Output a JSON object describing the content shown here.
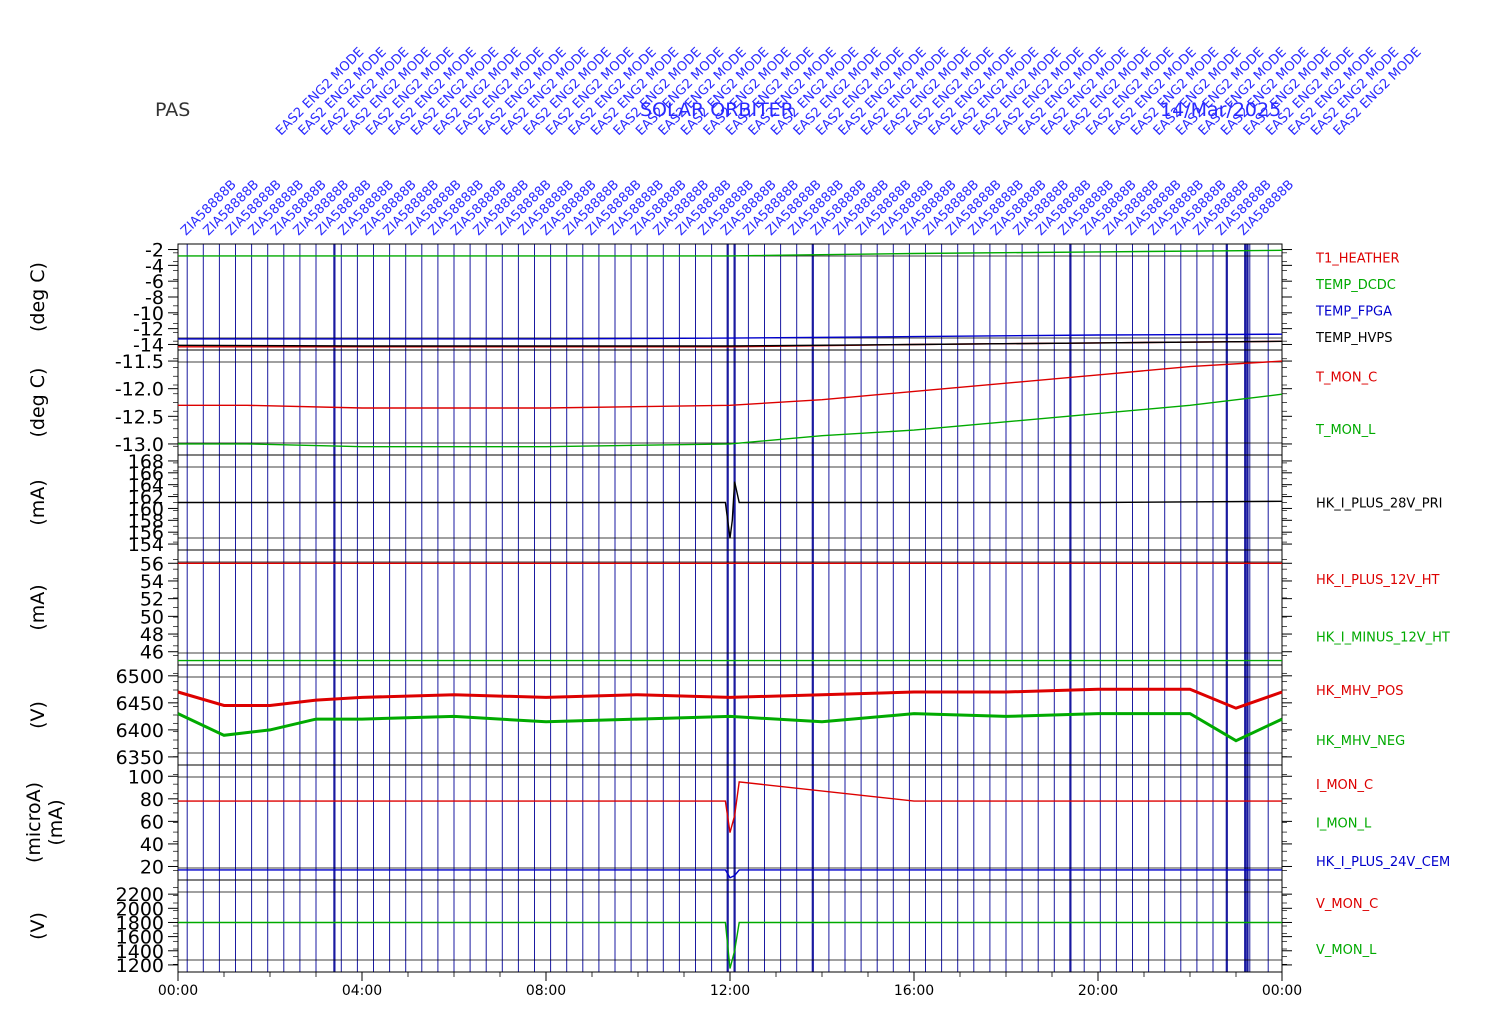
{
  "header": {
    "instrument": "PAS",
    "mission": "SOLAR ORBITER",
    "date": "14/Mar/2025"
  },
  "colors": {
    "red": "#dd0000",
    "green": "#00aa00",
    "blue": "#0000cc",
    "black": "#000000",
    "event_line": "#1a1aa0",
    "annotation": "#2a2aff"
  },
  "time_axis": {
    "tick_labels": [
      "00:00",
      "04:00",
      "08:00",
      "12:00",
      "16:00",
      "20:00",
      "00:00"
    ],
    "range_hours": [
      0,
      24
    ]
  },
  "annotations": {
    "top_row_text": "EAS2 ENG2 MODE",
    "bottom_row_text": "ZIA58888B",
    "note": "dense rotated event labels along the top"
  },
  "chart_data": [
    {
      "type": "line",
      "panel": "temperatures-1",
      "ylabel": "(deg C)",
      "ylim": [
        -14.7,
        -1.3
      ],
      "ytick_labels": [
        "-2",
        "-4",
        "-6",
        "-8",
        "-10",
        "-12",
        "-14"
      ],
      "ytick_values": [
        -2,
        -4,
        -6,
        -8,
        -10,
        -12,
        -14
      ],
      "series": [
        {
          "name": "T1_HEATHER",
          "color": "#dd0000",
          "x": [
            0,
            4,
            8,
            12,
            16,
            20,
            24
          ],
          "values": [
            -14.3,
            -14.3,
            -14.3,
            -14.3,
            -14.0,
            -13.8,
            -13.6
          ]
        },
        {
          "name": "TEMP_DCDC",
          "color": "#00aa00",
          "x": [
            0,
            4,
            8,
            12,
            16,
            20,
            24
          ],
          "values": [
            -2.8,
            -2.8,
            -2.8,
            -2.8,
            -2.5,
            -2.3,
            -2.1
          ]
        },
        {
          "name": "TEMP_FPGA",
          "color": "#0000cc",
          "x": [
            0,
            4,
            8,
            12,
            16,
            20,
            24
          ],
          "values": [
            -13.3,
            -13.3,
            -13.3,
            -13.2,
            -13.0,
            -12.8,
            -12.7
          ]
        },
        {
          "name": "TEMP_HVPS",
          "color": "#000000",
          "x": [
            0,
            4,
            8,
            12,
            16,
            20,
            24
          ],
          "values": [
            -14.1,
            -14.2,
            -14.2,
            -14.2,
            -14.0,
            -13.8,
            -13.6
          ]
        }
      ]
    },
    {
      "type": "line",
      "panel": "temperatures-2",
      "ylabel": "(deg C)",
      "ylim": [
        -13.2,
        -11.3
      ],
      "ytick_labels": [
        "-11.5",
        "-12.0",
        "-12.5",
        "-13.0"
      ],
      "ytick_values": [
        -11.5,
        -12.0,
        -12.5,
        -13.0
      ],
      "series": [
        {
          "name": "T_MON_C",
          "color": "#dd0000",
          "x": [
            0,
            1.5,
            4,
            8,
            12,
            14,
            16,
            18,
            20,
            22,
            24
          ],
          "values": [
            -12.3,
            -12.3,
            -12.35,
            -12.35,
            -12.3,
            -12.2,
            -12.05,
            -11.9,
            -11.75,
            -11.6,
            -11.5
          ]
        },
        {
          "name": "T_MON_L",
          "color": "#00aa00",
          "x": [
            0,
            1.5,
            4,
            8,
            12,
            14,
            16,
            18,
            20,
            22,
            24
          ],
          "values": [
            -13.0,
            -13.0,
            -13.05,
            -13.05,
            -13.0,
            -12.85,
            -12.75,
            -12.6,
            -12.45,
            -12.3,
            -12.1
          ]
        }
      ]
    },
    {
      "type": "line",
      "panel": "primary-current",
      "ylabel": "(mA)",
      "ylim": [
        153,
        169
      ],
      "ytick_labels": [
        "168",
        "166",
        "164",
        "162",
        "160",
        "158",
        "156",
        "154"
      ],
      "ytick_values": [
        168,
        166,
        164,
        162,
        160,
        158,
        156,
        154
      ],
      "series": [
        {
          "name": "HK_I_PLUS_28V_PRI",
          "color": "#000000",
          "x": [
            0,
            4,
            8,
            11.9,
            12.0,
            12.05,
            12.1,
            12.2,
            16,
            20,
            24
          ],
          "values": [
            161.0,
            161.0,
            161.0,
            161.0,
            155.0,
            158.0,
            164.5,
            161.0,
            161.0,
            161.0,
            161.2
          ]
        }
      ]
    },
    {
      "type": "line",
      "panel": "heater-currents",
      "ylabel": "(mA)",
      "ylim": [
        44.5,
        57.5
      ],
      "ytick_labels": [
        "56",
        "54",
        "52",
        "50",
        "48",
        "46"
      ],
      "ytick_values": [
        56,
        54,
        52,
        50,
        48,
        46
      ],
      "series": [
        {
          "name": "HK_I_PLUS_12V_HT",
          "color": "#dd0000",
          "x": [
            0,
            4,
            8,
            12,
            16,
            20,
            24
          ],
          "values": [
            56.0,
            56.0,
            56.0,
            56.0,
            56.0,
            56.0,
            56.0
          ]
        },
        {
          "name": "HK_I_MINUS_12V_HT",
          "color": "#00aa00",
          "x": [
            0,
            4,
            8,
            12,
            16,
            20,
            24
          ],
          "values": [
            45.0,
            45.0,
            45.0,
            45.0,
            45.0,
            45.0,
            45.0
          ]
        }
      ]
    },
    {
      "type": "line",
      "panel": "mcp-high-voltage",
      "ylabel": "(V)",
      "ylim": [
        6335,
        6520
      ],
      "ytick_labels": [
        "6500",
        "6450",
        "6400",
        "6350"
      ],
      "ytick_values": [
        6500,
        6450,
        6400,
        6350
      ],
      "series": [
        {
          "name": "HK_MHV_POS",
          "color": "#dd0000",
          "x": [
            0,
            1,
            2,
            3,
            4,
            6,
            8,
            10,
            12,
            14,
            16,
            18,
            20,
            22,
            23,
            24
          ],
          "values": [
            6470,
            6445,
            6445,
            6455,
            6460,
            6465,
            6460,
            6465,
            6460,
            6465,
            6470,
            6470,
            6475,
            6475,
            6440,
            6470
          ]
        },
        {
          "name": "HK_MHV_NEG",
          "color": "#00aa00",
          "x": [
            0,
            1,
            2,
            3,
            4,
            6,
            8,
            10,
            12,
            14,
            16,
            18,
            20,
            22,
            23,
            24
          ],
          "values": [
            6430,
            6390,
            6400,
            6420,
            6420,
            6425,
            6415,
            6420,
            6425,
            6415,
            6430,
            6425,
            6430,
            6430,
            6380,
            6420
          ]
        }
      ]
    },
    {
      "type": "line",
      "panel": "monitor-currents",
      "ylabel": "(microA)",
      "ylabel2": "(mA)",
      "ylim": [
        8,
        110
      ],
      "ytick_labels": [
        "100",
        "80",
        "60",
        "40",
        "20"
      ],
      "ytick_values": [
        100,
        80,
        60,
        40,
        20
      ],
      "series": [
        {
          "name": "I_MON_C",
          "color": "#dd0000",
          "x": [
            0,
            4,
            8,
            11.9,
            12.0,
            12.1,
            12.2,
            16,
            20,
            24
          ],
          "values": [
            78,
            78,
            78,
            78,
            50,
            65,
            95,
            78,
            78,
            78
          ]
        },
        {
          "name": "I_MON_L",
          "color": "#00aa00",
          "x": [],
          "values": []
        },
        {
          "name": "HK_I_PLUS_24V_CEM",
          "color": "#0000cc",
          "x": [
            0,
            4,
            8,
            11.9,
            12.0,
            12.1,
            12.2,
            16,
            20,
            24
          ],
          "values": [
            17,
            17,
            17,
            17,
            10,
            12,
            17,
            17,
            17,
            17
          ]
        }
      ]
    },
    {
      "type": "line",
      "panel": "monitor-voltages",
      "ylabel": "(V)",
      "ylim": [
        1100,
        2400
      ],
      "ytick_labels": [
        "2200",
        "2000",
        "1800",
        "1600",
        "1400",
        "1200"
      ],
      "ytick_values": [
        2200,
        2000,
        1800,
        1600,
        1400,
        1200
      ],
      "series": [
        {
          "name": "V_MON_C",
          "color": "#dd0000",
          "x": [],
          "values": []
        },
        {
          "name": "V_MON_L",
          "color": "#00aa00",
          "x": [
            0,
            4,
            8,
            11.9,
            12.0,
            12.1,
            12.2,
            16,
            20,
            24
          ],
          "values": [
            1800,
            1800,
            1800,
            1800,
            1150,
            1400,
            1800,
            1800,
            1800,
            1800
          ]
        }
      ]
    }
  ]
}
